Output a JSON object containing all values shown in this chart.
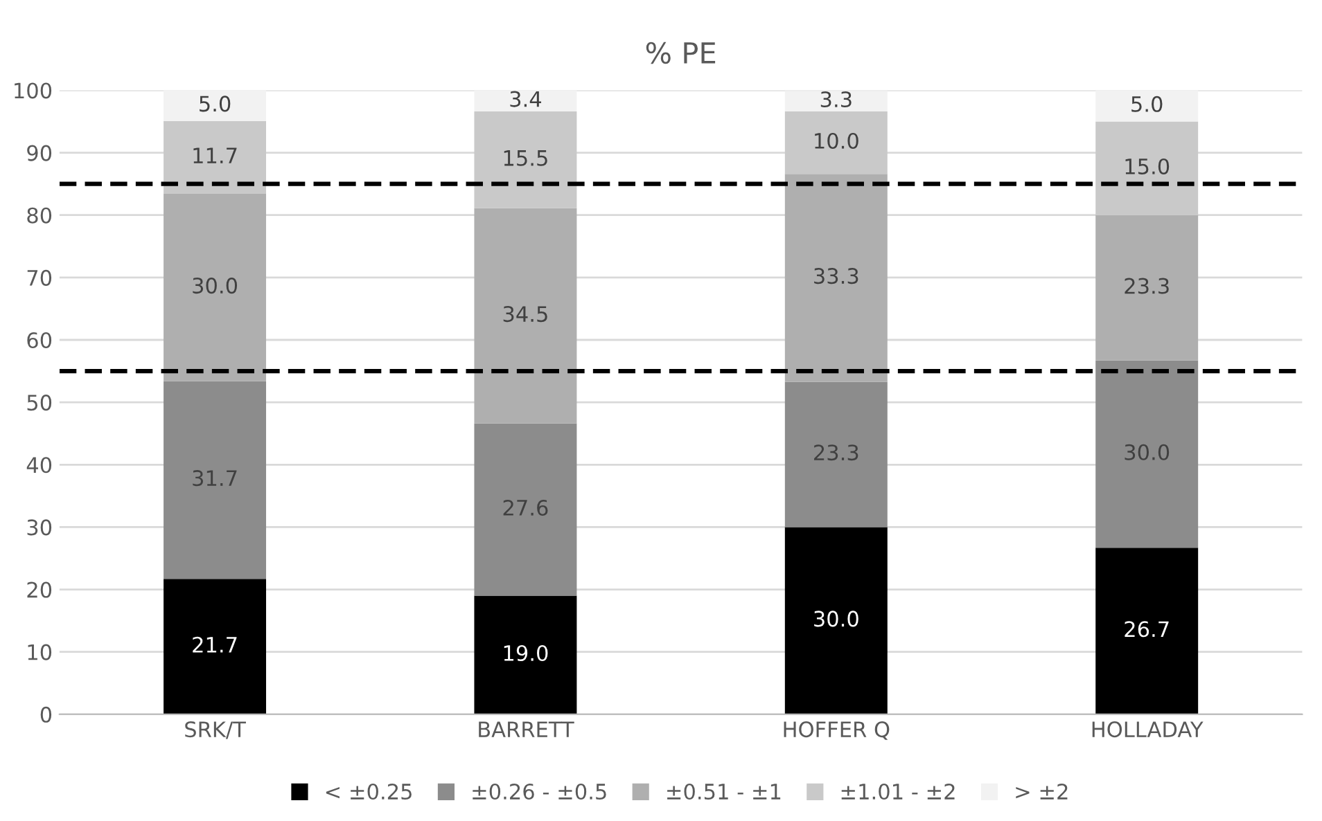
{
  "chart_data": {
    "type": "bar",
    "title": "% PE",
    "stacked": true,
    "categories": [
      "SRK/T",
      "BARRETT",
      "HOFFER Q",
      "HOLLADAY"
    ],
    "series": [
      {
        "name": "< ±0.25",
        "color": "#000000",
        "values": [
          21.7,
          19.0,
          30.0,
          26.7
        ],
        "value_labels": [
          "21.7",
          "19.0",
          "30.0",
          "26.7"
        ]
      },
      {
        "name": "±0.26 - ±0.5",
        "color": "#8c8c8c",
        "values": [
          31.7,
          27.6,
          23.3,
          30.0
        ],
        "value_labels": [
          "31.7",
          "27.6",
          "23.3",
          "30.0"
        ]
      },
      {
        "name": "±0.51 - ±1",
        "color": "#afafaf",
        "values": [
          30.0,
          34.5,
          33.3,
          23.3
        ],
        "value_labels": [
          "30.0",
          "34.5",
          "33.3",
          "23.3"
        ]
      },
      {
        "name": "±1.01 - ±2",
        "color": "#c9c9c9",
        "values": [
          11.7,
          15.5,
          10.0,
          15.0
        ],
        "value_labels": [
          "11.7",
          "15.5",
          "10.0",
          "15.0"
        ]
      },
      {
        "name": "> ±2",
        "color": "#f2f2f2",
        "values": [
          5.0,
          3.4,
          3.3,
          5.0
        ],
        "value_labels": [
          "5.0",
          "3.4",
          "3.3",
          "5.0"
        ]
      }
    ],
    "ylim": [
      0,
      100
    ],
    "yticks": [
      0,
      10,
      20,
      30,
      40,
      50,
      60,
      70,
      80,
      90,
      100
    ],
    "grid": "y",
    "legend": "bottom",
    "ref_lines": [
      {
        "axis": "y",
        "value": 55,
        "color": "#000000",
        "line_style": "dashed"
      },
      {
        "axis": "y",
        "value": 85,
        "color": "#000000",
        "line_style": "dashed"
      }
    ]
  }
}
